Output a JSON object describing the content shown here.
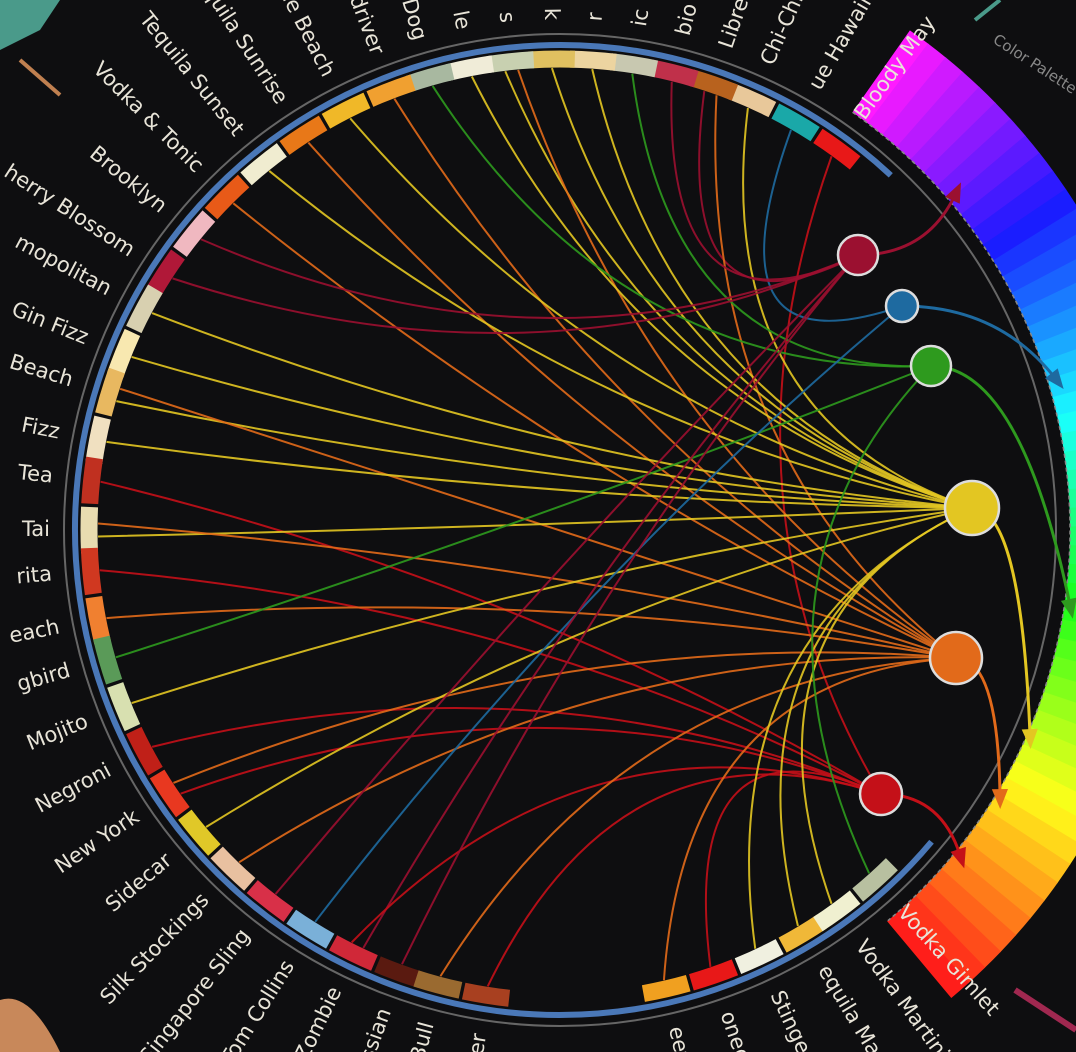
{
  "palette_label": "Color Palette",
  "nodes": [
    {
      "color": "#9b1030"
    },
    {
      "color": "#1e6aa0"
    },
    {
      "color": "#2e9a1e"
    },
    {
      "color": "#e3c622"
    },
    {
      "color": "#e26a1a"
    },
    {
      "color": "#c41018"
    }
  ],
  "cocktails": [
    {
      "name": "Bloody May",
      "color": "#e81818",
      "links": [
        5
      ]
    },
    {
      "name": "ue Hawaii",
      "color": "#1aa8a8",
      "links": [
        1
      ]
    },
    {
      "name": "Chi-Chi",
      "color": "#e8c89a",
      "links": [
        3
      ]
    },
    {
      "name": "Libre",
      "color": "#b8621e",
      "links": [
        0,
        4
      ]
    },
    {
      "name": "bio",
      "color": "#c0304a",
      "links": [
        0
      ]
    },
    {
      "name": "ic",
      "color": "#c8c8b0",
      "links": [
        2
      ]
    },
    {
      "name": "r",
      "color": "#ecd4a0",
      "links": [
        3
      ]
    },
    {
      "name": "k",
      "color": "#e0c060",
      "links": [
        3
      ]
    },
    {
      "name": "s",
      "color": "#c8d0b0",
      "links": [
        3,
        4
      ]
    },
    {
      "name": "le",
      "color": "#f0ecd8",
      "links": [
        3
      ]
    },
    {
      "name": "Dog",
      "color": "#a8b8a0",
      "links": [
        2
      ]
    },
    {
      "name": "driver",
      "color": "#f0a030",
      "links": [
        4
      ]
    },
    {
      "name": "ne Beach",
      "color": "#f0b828",
      "links": [
        3
      ]
    },
    {
      "name": "equila Sunrise",
      "color": "#e87818",
      "links": [
        4
      ]
    },
    {
      "name": "Tequila Sunset",
      "color": "#f0ecd0",
      "links": [
        3
      ]
    },
    {
      "name": "Vodka & Tonic",
      "color": "#e85a18",
      "links": [
        4
      ]
    },
    {
      "name": "Brooklyn",
      "color": "#f0b8c0",
      "links": [
        0
      ]
    },
    {
      "name": "herry Blossom",
      "color": "#b01838",
      "links": [
        0
      ]
    },
    {
      "name": "mopolitan",
      "color": "#d8d0b0",
      "links": [
        3
      ]
    },
    {
      "name": "Gin Fizz",
      "color": "#f8e8b0",
      "links": [
        3
      ]
    },
    {
      "name": "Beach",
      "color": "#e8b860",
      "links": [
        3,
        4
      ]
    },
    {
      "name": "Fizz",
      "color": "#f0e0c0",
      "links": [
        3
      ]
    },
    {
      "name": "Tea",
      "color": "#c03020",
      "links": [
        5
      ]
    },
    {
      "name": "Tai",
      "color": "#e8dcb0",
      "links": [
        3,
        4
      ]
    },
    {
      "name": "rita",
      "color": "#d03820",
      "links": [
        5
      ]
    },
    {
      "name": "each",
      "color": "#f08030",
      "links": [
        4
      ]
    },
    {
      "name": "gbird",
      "color": "#5a9a58",
      "links": [
        2
      ]
    },
    {
      "name": "Mojito",
      "color": "#d8e0b0",
      "links": [
        3
      ]
    },
    {
      "name": "Negroni",
      "color": "#c02018",
      "links": [
        5
      ]
    },
    {
      "name": "New York",
      "color": "#e83820",
      "links": [
        5,
        4
      ]
    },
    {
      "name": "Sidecar",
      "color": "#e0c828",
      "links": [
        3
      ]
    },
    {
      "name": "Silk Stockings",
      "color": "#e8c0a0",
      "links": [
        4
      ]
    },
    {
      "name": "Singapore Sling",
      "color": "#d83048",
      "links": [
        0
      ]
    },
    {
      "name": "Tom Collins",
      "color": "#7ab0d8",
      "links": [
        1
      ]
    },
    {
      "name": "Zombie",
      "color": "#d02838",
      "links": [
        0,
        5
      ]
    },
    {
      "name": "ussian",
      "color": "#5a1a10",
      "links": [
        0
      ]
    },
    {
      "name": "Bull",
      "color": "#9a6a30",
      "links": [
        4
      ]
    },
    {
      "name": "er",
      "color": "#a84020",
      "links": [
        5
      ]
    },
    {
      "name": "eet",
      "color": "#f0a020",
      "links": [
        4
      ]
    },
    {
      "name": "oned",
      "color": "#e81818",
      "links": [
        5
      ]
    },
    {
      "name": "Stinger",
      "color": "#f0f0e0",
      "links": [
        3
      ]
    },
    {
      "name": "equila Martini",
      "color": "#f0b838",
      "links": [
        3
      ]
    },
    {
      "name": "Vodka Martini",
      "color": "#f0f0d0",
      "links": [
        3
      ]
    },
    {
      "name": "Vodka Gimlet",
      "color": "#b8c0a0",
      "links": [
        2
      ]
    }
  ]
}
